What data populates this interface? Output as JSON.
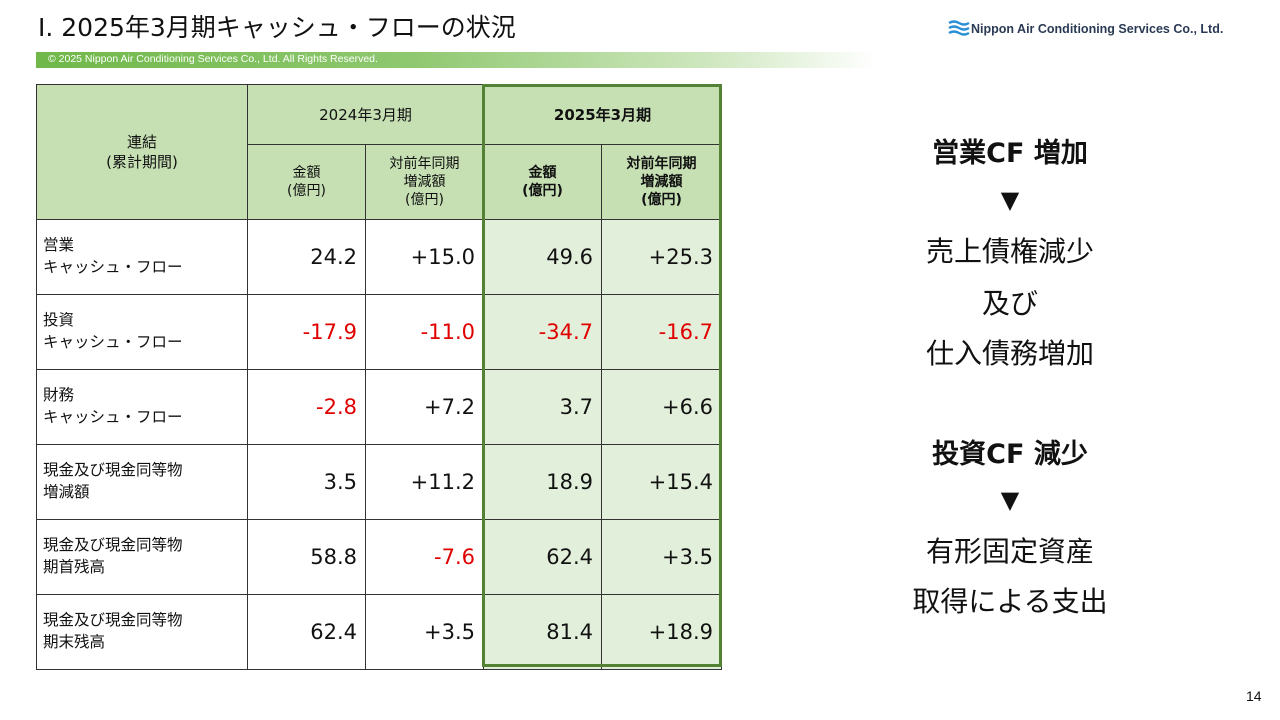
{
  "header": {
    "title": "Ⅰ. 2025年3月期キャッシュ・フローの状況",
    "logo_text": "Nippon Air Conditioning Services Co., Ltd.",
    "copyright": "© 2025 Nippon Air Conditioning Services Co., Ltd. All Rights Reserved."
  },
  "table": {
    "corner_label_line1": "連結",
    "corner_label_line2": "(累計期間)",
    "period_2024": "2024年3月期",
    "period_2025": "2025年3月期",
    "col_amount_line1": "金額",
    "col_amount_line2": "(億円)",
    "col_yoy_line1": "対前年同期",
    "col_yoy_line2": "増減額",
    "col_yoy_line3": "(億円)",
    "rows": [
      {
        "label1": "営業",
        "label2": "キャッシュ・フロー",
        "v2024": "24.2",
        "y2024": "+15.0",
        "v2025": "49.6",
        "y2025": "+25.3"
      },
      {
        "label1": "投資",
        "label2": "キャッシュ・フロー",
        "v2024": "-17.9",
        "y2024": "-11.0",
        "v2025": "-34.7",
        "y2025": "-16.7"
      },
      {
        "label1": "財務",
        "label2": "キャッシュ・フロー",
        "v2024": "-2.8",
        "y2024": "+7.2",
        "v2025": "3.7",
        "y2025": "+6.6"
      },
      {
        "label1": "現金及び現金同等物",
        "label2": "増減額",
        "v2024": "3.5",
        "y2024": "+11.2",
        "v2025": "18.9",
        "y2025": "+15.4"
      },
      {
        "label1": "現金及び現金同等物",
        "label2": "期首残高",
        "v2024": "58.8",
        "y2024": "-7.6",
        "v2025": "62.4",
        "y2025": "+3.5"
      },
      {
        "label1": "現金及び現金同等物",
        "label2": "期末残高",
        "v2024": "62.4",
        "y2024": "+3.5",
        "v2025": "81.4",
        "y2025": "+18.9"
      }
    ]
  },
  "summary": {
    "op_heading": "営業CF 増加",
    "arrow1": "▼",
    "op_reason1": "売上債権減少",
    "op_reason2": "及び",
    "op_reason3": "仕入債務増加",
    "inv_heading": "投資CF 減少",
    "arrow2": "▼",
    "inv_reason1": "有形固定資産",
    "inv_reason2": "取得による支出"
  },
  "page_number": "14",
  "colors": {
    "header_green": "#c6e0b4",
    "highlight_green": "#e2efda",
    "highlight_border": "#548235",
    "negative": "#e00000"
  }
}
